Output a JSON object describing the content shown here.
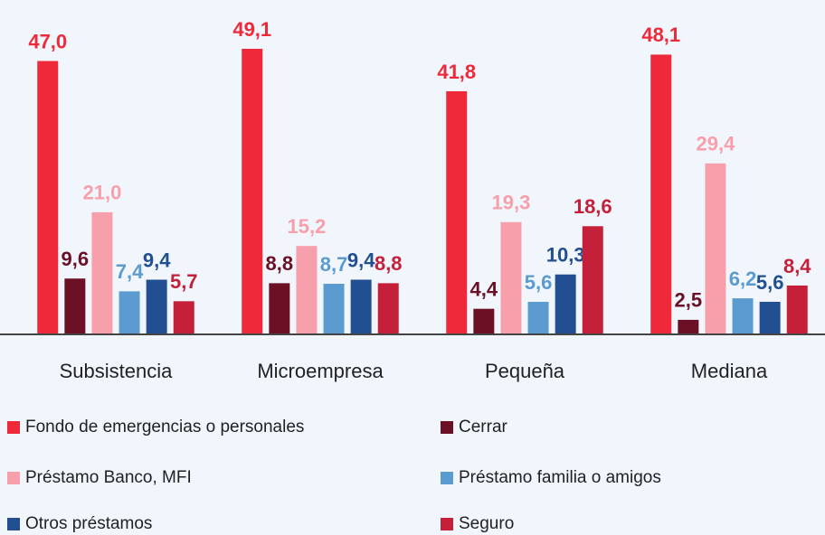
{
  "chart_data": {
    "type": "bar",
    "categories": [
      "Subsistencia",
      "Microempresa",
      "Pequeña",
      "Mediana"
    ],
    "series": [
      {
        "name": "Fondo de emergencias o personales",
        "color": "#ee2a3a",
        "values": [
          47.0,
          49.1,
          41.8,
          48.1
        ],
        "value_labels": [
          "47,0",
          "49,1",
          "41,8",
          "48,1"
        ]
      },
      {
        "name": "Cerrar",
        "color": "#6b1025",
        "values": [
          9.6,
          8.8,
          4.4,
          2.5
        ],
        "value_labels": [
          "9,6",
          "8,8",
          "4,4",
          "2,5"
        ]
      },
      {
        "name": "Préstamo Banco, MFI",
        "color": "#f7a0ac",
        "values": [
          21.0,
          15.2,
          19.3,
          29.4
        ],
        "value_labels": [
          "21,0",
          "15,2",
          "19,3",
          "29,4"
        ]
      },
      {
        "name": "Préstamo familia o amigos",
        "color": "#5b9bd0",
        "values": [
          7.4,
          8.7,
          5.6,
          6.2
        ],
        "value_labels": [
          "7,4",
          "8,7",
          "5,6",
          "6,2"
        ]
      },
      {
        "name": "Otros préstamos",
        "color": "#224f91",
        "values": [
          9.4,
          9.4,
          10.3,
          5.6
        ],
        "value_labels": [
          "9,4",
          "9,4",
          "10,3",
          "5,6"
        ]
      },
      {
        "name": "Seguro",
        "color": "#c5203a",
        "values": [
          5.7,
          8.8,
          18.6,
          8.4
        ],
        "value_labels": [
          "5,7",
          "8,8",
          "18,6",
          "8,4"
        ]
      }
    ],
    "legend": "bottom"
  }
}
